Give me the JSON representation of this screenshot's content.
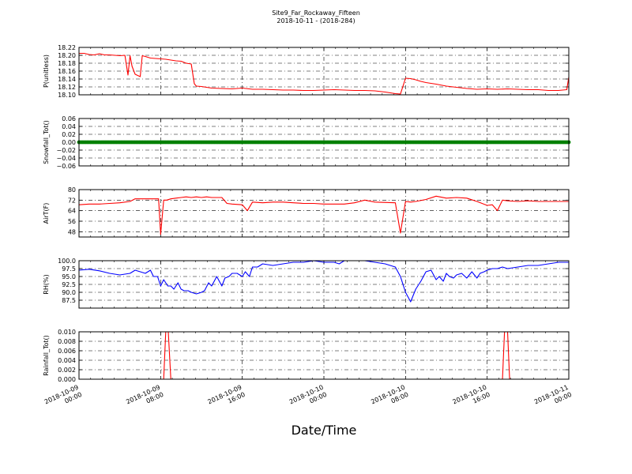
{
  "figure": {
    "title_line1": "Site9_Far_Rockaway_Fifteen",
    "title_line2": "2018-10-11 - (2018-284)",
    "xlabel": "Date/Time"
  },
  "colors": {
    "P": "#ff0000",
    "Snowfall": "#008000",
    "AirT": "#ff0000",
    "RH": "#0000ff",
    "Rainfall": "#ff0000"
  },
  "chart_data": [
    {
      "type": "line",
      "ylabel": "P(unitless)",
      "xlim": [
        0,
        48
      ],
      "ylim": [
        18.1,
        18.22
      ],
      "yticks": [
        18.1,
        18.12,
        18.14,
        18.16,
        18.18,
        18.2,
        18.22
      ],
      "ytick_labels": [
        "18.10",
        "18.12",
        "18.14",
        "18.16",
        "18.18",
        "18.20",
        "18.22"
      ],
      "series": [
        {
          "x": [
            0,
            0.5,
            1,
            1.5,
            2,
            2.5,
            3,
            3.5,
            4,
            4.5,
            4.8,
            5,
            5.2,
            5.5,
            6,
            6.2,
            6.5,
            7,
            7.5,
            8,
            8.5,
            9,
            9.5,
            10,
            10.5,
            11,
            11.3,
            11.5,
            12,
            13,
            14,
            15,
            16,
            17,
            18,
            19,
            20,
            21,
            22,
            23,
            24,
            25,
            26,
            27,
            28,
            29,
            30,
            31,
            31.5,
            32,
            32.5,
            33,
            33.5,
            34,
            35,
            36,
            37,
            38,
            39,
            40,
            41,
            42,
            43,
            44,
            45,
            46,
            47,
            47.8,
            48
          ],
          "y": [
            18.205,
            18.205,
            18.202,
            18.201,
            18.204,
            18.201,
            18.201,
            18.2,
            18.199,
            18.2,
            18.15,
            18.199,
            18.172,
            18.152,
            18.146,
            18.199,
            18.197,
            18.193,
            18.192,
            18.191,
            18.19,
            18.188,
            18.186,
            18.185,
            18.18,
            18.178,
            18.128,
            18.122,
            18.121,
            18.117,
            18.116,
            18.115,
            18.117,
            18.114,
            18.114,
            18.113,
            18.112,
            18.112,
            18.111,
            18.111,
            18.112,
            18.113,
            18.112,
            18.111,
            18.111,
            18.11,
            18.107,
            18.103,
            18.102,
            18.142,
            18.141,
            18.138,
            18.134,
            18.131,
            18.127,
            18.122,
            18.119,
            18.116,
            18.114,
            18.115,
            18.114,
            18.115,
            18.114,
            18.113,
            18.113,
            18.111,
            18.111,
            18.113,
            18.145
          ]
        }
      ]
    },
    {
      "type": "scatter",
      "ylabel": "Snowfall_Tot()",
      "xlim": [
        0,
        48
      ],
      "ylim": [
        -0.06,
        0.06
      ],
      "yticks": [
        -0.06,
        -0.04,
        -0.02,
        0.0,
        0.02,
        0.04,
        0.06
      ],
      "ytick_labels": [
        "−0.06",
        "−0.04",
        "−0.02",
        "0.00",
        "0.02",
        "0.04",
        "0.06"
      ],
      "series": [
        {
          "x_range": [
            0,
            48
          ],
          "y_constant": 0.0
        }
      ]
    },
    {
      "type": "line",
      "ylabel": "AirT(F)",
      "xlim": [
        0,
        48
      ],
      "ylim": [
        44,
        80
      ],
      "yticks": [
        48,
        56,
        64,
        72,
        80
      ],
      "ytick_labels": [
        "48",
        "56",
        "64",
        "72",
        "80"
      ],
      "series": [
        {
          "x": [
            0,
            1,
            2,
            3,
            4,
            5,
            5.5,
            6,
            6.5,
            7,
            7.5,
            7.8,
            8,
            8.3,
            8.6,
            9,
            9.5,
            10,
            10.5,
            11,
            11.5,
            12,
            12.5,
            13,
            14,
            14.5,
            15,
            16,
            16.5,
            17,
            18,
            19,
            20,
            21,
            22,
            23,
            24,
            25,
            26,
            27,
            28,
            29,
            31,
            31.5,
            32,
            32.5,
            33,
            34,
            35,
            36,
            37,
            38,
            39,
            40,
            40.5,
            41,
            41.5,
            42,
            43,
            44,
            45,
            46,
            47,
            48
          ],
          "y": [
            68.5,
            69,
            69,
            69.5,
            70,
            71,
            73,
            73,
            73,
            73,
            73,
            73,
            46,
            72,
            72,
            73,
            73.5,
            74,
            74.5,
            74,
            74.5,
            74,
            74.5,
            74,
            74,
            69.5,
            69,
            68.5,
            64,
            70.5,
            70,
            70.5,
            70.5,
            70,
            69.5,
            69.5,
            69,
            69,
            69,
            70,
            72,
            70.5,
            70,
            47,
            71,
            70.5,
            71,
            72.5,
            75,
            73.5,
            74,
            73.5,
            71,
            68,
            68.5,
            64,
            72,
            71.5,
            71,
            71.5,
            71,
            71,
            71,
            71
          ]
        }
      ]
    },
    {
      "type": "line",
      "ylabel": "RH(%)",
      "xlim": [
        0,
        48
      ],
      "ylim": [
        85.0,
        100.0
      ],
      "yticks": [
        87.5,
        90.0,
        92.5,
        95.0,
        97.5,
        100.0
      ],
      "ytick_labels": [
        "87.5",
        "90.0",
        "92.5",
        "95.0",
        "97.5",
        "100.0"
      ],
      "series": [
        {
          "x": [
            0,
            1,
            2,
            3,
            4,
            5,
            5.5,
            6,
            6.5,
            7,
            7.3,
            7.7,
            8,
            8.3,
            8.7,
            9,
            9.3,
            9.7,
            10,
            10.3,
            10.7,
            11,
            11.5,
            12,
            12.3,
            12.7,
            13,
            13.5,
            14,
            14.3,
            14.7,
            15,
            15.5,
            16,
            16.3,
            16.7,
            17,
            17.5,
            18,
            19,
            20,
            21,
            22,
            23,
            24,
            25,
            25.5,
            26,
            27,
            28,
            29,
            30,
            31,
            31.5,
            32,
            32.5,
            33,
            33.5,
            34,
            34.5,
            35,
            35.3,
            35.7,
            36,
            36.3,
            36.7,
            37,
            37.5,
            38,
            38.5,
            39,
            39.3,
            39.7,
            40,
            40.5,
            41,
            41.5,
            42,
            43,
            44,
            45,
            46,
            47,
            48
          ],
          "y": [
            97,
            97.3,
            96.8,
            96,
            95.5,
            96,
            97,
            96.5,
            96,
            97,
            95,
            95,
            92,
            94,
            92,
            92,
            91,
            93,
            91,
            90.5,
            90.5,
            90,
            89.5,
            90,
            90.5,
            93,
            92,
            95,
            92,
            94.5,
            95,
            96,
            96,
            95,
            96.5,
            95,
            98,
            98,
            99,
            98.5,
            99,
            99.5,
            99.5,
            100,
            99.5,
            99.5,
            99,
            100,
            100,
            100,
            99.5,
            99,
            98,
            95,
            90,
            87,
            91,
            93.5,
            96.5,
            97,
            94,
            95,
            93.5,
            96,
            95,
            94.5,
            95.5,
            96,
            94.5,
            96.5,
            94.5,
            96,
            96.5,
            97,
            97.5,
            97.5,
            98,
            97.5,
            98,
            98.5,
            98.5,
            99,
            99.5,
            99.5
          ]
        }
      ]
    },
    {
      "type": "line",
      "ylabel": "Rainfall_Tot()",
      "xlim": [
        0,
        48
      ],
      "ylim": [
        0.0,
        0.01
      ],
      "yticks": [
        0.0,
        0.002,
        0.004,
        0.006,
        0.008,
        0.01
      ],
      "ytick_labels": [
        "0.000",
        "0.002",
        "0.004",
        "0.006",
        "0.008",
        "0.010"
      ],
      "series": [
        {
          "x": [
            0,
            8.3,
            8.5,
            8.75,
            9,
            41.5,
            41.7,
            42,
            42.2,
            48
          ],
          "y": [
            0,
            0,
            0.01,
            0.01,
            0,
            0,
            0.01,
            0.01,
            0,
            0
          ]
        }
      ]
    }
  ],
  "xaxis": {
    "ticks": [
      0,
      8,
      16,
      24,
      32,
      40,
      48
    ],
    "tick_labels": [
      [
        "2018-10-09",
        "00:00"
      ],
      [
        "2018-10-09",
        "08:00"
      ],
      [
        "2018-10-09",
        "16:00"
      ],
      [
        "2018-10-10",
        "00:00"
      ],
      [
        "2018-10-10",
        "08:00"
      ],
      [
        "2018-10-10",
        "16:00"
      ],
      [
        "2018-10-11",
        "00:00"
      ]
    ]
  }
}
